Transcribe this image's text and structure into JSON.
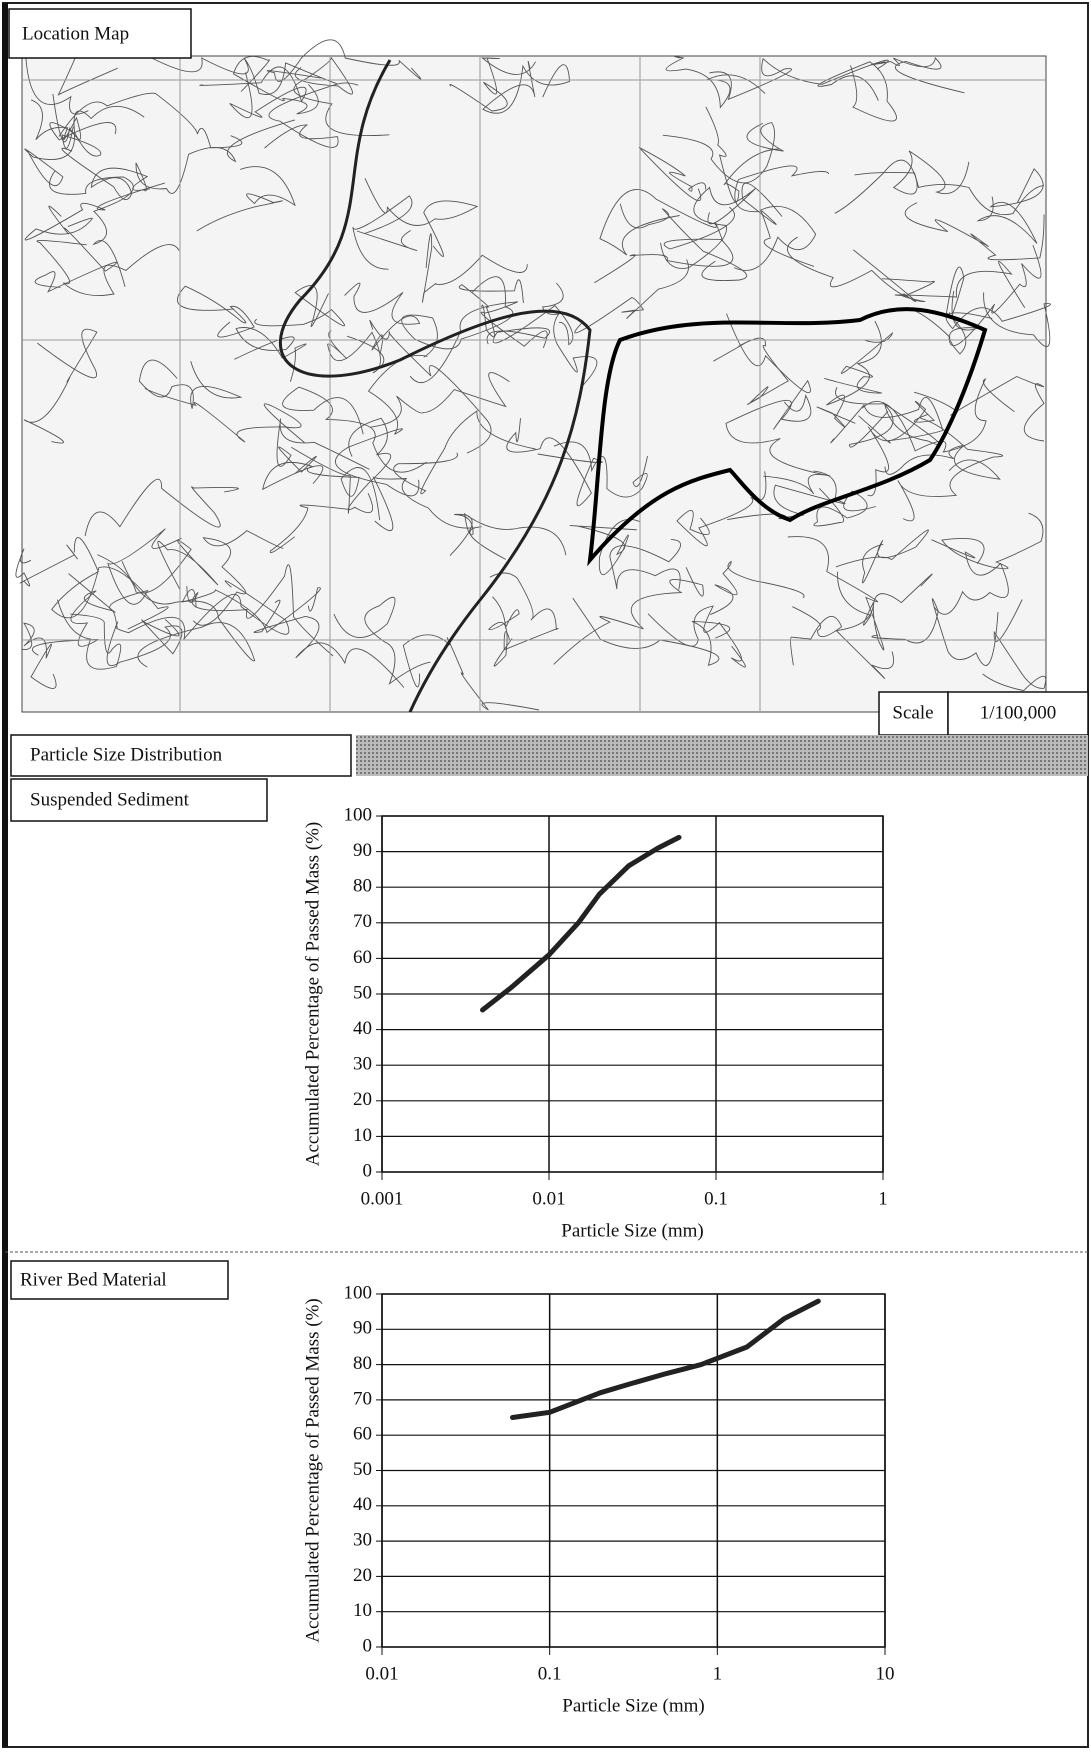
{
  "labels": {
    "location_map": "Location Map",
    "scale": "Scale",
    "scale_value": "1/100,000",
    "particle_size": "Particle Size Distribution",
    "suspended": "Suspended Sediment",
    "river_bed": "River Bed Material"
  },
  "chart_data": [
    {
      "type": "line",
      "x_label": "Particle Size (mm)",
      "y_label": "Accumulated Percentage of Passed Mass (%)",
      "x": [
        0.004,
        0.006,
        0.01,
        0.015,
        0.02,
        0.03,
        0.045,
        0.06
      ],
      "values": [
        45.5,
        52,
        61,
        70,
        78,
        86,
        91,
        94
      ],
      "color": "#222222",
      "xscale": "log",
      "grid": true,
      "xlim": [
        0.001,
        1
      ],
      "xticks": [
        0.001,
        0.01,
        0.1,
        1
      ],
      "ylim": [
        0,
        100
      ],
      "yticks": [
        0,
        10,
        20,
        30,
        40,
        50,
        60,
        70,
        80,
        90,
        100
      ]
    },
    {
      "type": "line",
      "x_label": "Particle Size (mm)",
      "y_label": "Accumulated Percentage of Passed Mass (%)",
      "x": [
        0.06,
        0.1,
        0.2,
        0.3,
        0.5,
        0.8,
        1.5,
        2.5,
        4
      ],
      "values": [
        65,
        66.5,
        72,
        74.5,
        77.5,
        80,
        85,
        93,
        98
      ],
      "color": "#222222",
      "xscale": "log",
      "grid": true,
      "xlim": [
        0.01,
        10
      ],
      "xticks": [
        0.01,
        0.1,
        1,
        10
      ],
      "ylim": [
        0,
        100
      ],
      "yticks": [
        0,
        10,
        20,
        30,
        40,
        50,
        60,
        70,
        80,
        90,
        100
      ]
    }
  ]
}
